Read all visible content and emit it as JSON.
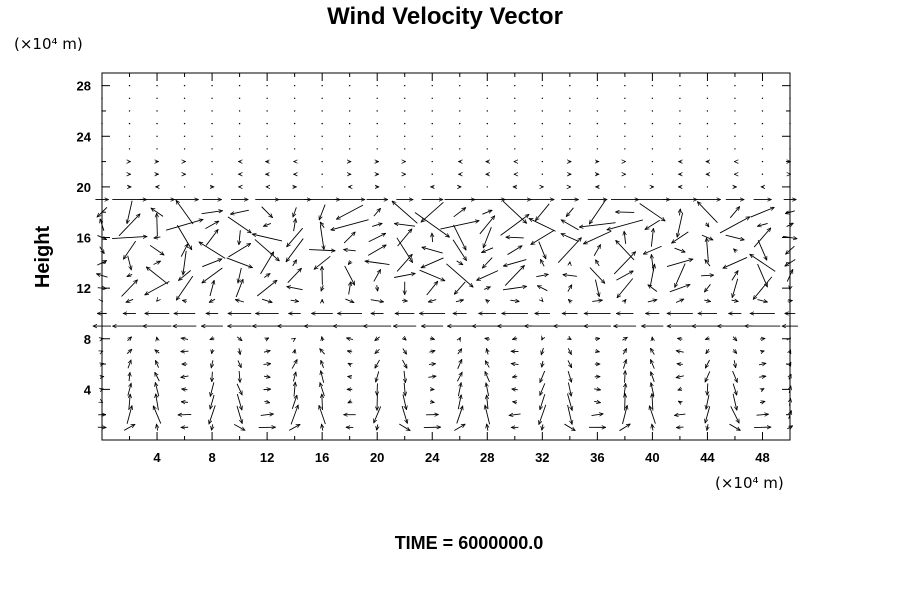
{
  "chart_data": {
    "type": "quiver",
    "title": "Wind Velocity Vector",
    "ylabel": "Height",
    "x_unit": "(×10⁴ m)",
    "y_unit": "(×10⁴ m)",
    "time_label": "TIME = 6000000.0",
    "xlim": [
      0,
      50
    ],
    "ylim": [
      0,
      29
    ],
    "x_ticks": [
      4,
      8,
      12,
      16,
      20,
      24,
      28,
      32,
      36,
      40,
      44,
      48
    ],
    "y_ticks": [
      4,
      8,
      12,
      16,
      20,
      24,
      28
    ],
    "grid": false,
    "arrow_color": "#000000",
    "grid_x": [
      0,
      2,
      4,
      6,
      8,
      10,
      12,
      14,
      16,
      18,
      20,
      22,
      24,
      26,
      28,
      30,
      32,
      34,
      36,
      38,
      40,
      42,
      44,
      46,
      48,
      50
    ],
    "grid_y": [
      1,
      2,
      3,
      4,
      5,
      6,
      7,
      8,
      9,
      10,
      11,
      12,
      13,
      14,
      15,
      16,
      17,
      18,
      19,
      20,
      21,
      22,
      23,
      24,
      25,
      26,
      27,
      28
    ],
    "vectors_note_hidden": ""
  }
}
